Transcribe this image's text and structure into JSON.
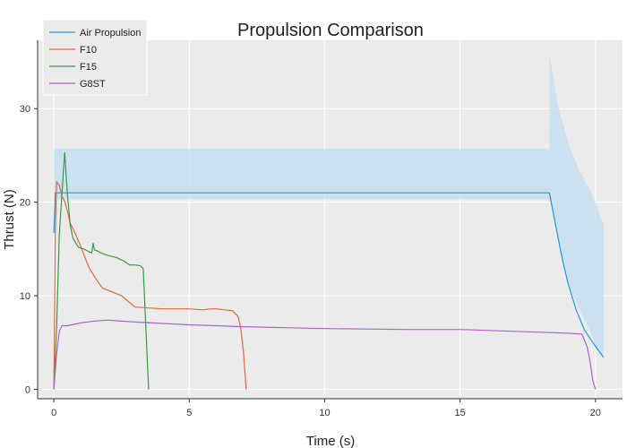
{
  "chart_data": {
    "type": "line",
    "title": "Propulsion Comparison",
    "xlabel": "Time (s)",
    "ylabel": "Thrust (N)",
    "xlim": [
      -0.6,
      21
    ],
    "ylim": [
      -1,
      37.3
    ],
    "xticks": [
      0,
      5,
      10,
      15,
      20
    ],
    "yticks": [
      0,
      10,
      20,
      30
    ],
    "grid": true,
    "legend_position": "top-left",
    "background": "#ebebeb",
    "series": [
      {
        "name": "Air Propulsion",
        "color": "#1f9ae0",
        "x": [
          0,
          0.05,
          2,
          5,
          10,
          15,
          18.3,
          18.4,
          18.6,
          18.8,
          19.0,
          19.3,
          19.6,
          20.0,
          20.3
        ],
        "y": [
          16.7,
          21.0,
          21.0,
          21.0,
          21.0,
          21.0,
          21.0,
          19.5,
          16.5,
          13.6,
          11.2,
          8.4,
          6.3,
          4.6,
          3.4
        ],
        "band": {
          "color": "#c5dff0",
          "x": [
            0,
            18.3,
            18.31,
            18.6,
            19.0,
            19.4,
            19.8,
            20.0,
            20.3
          ],
          "upper": [
            25.7,
            25.7,
            35.6,
            30.5,
            26.3,
            23.4,
            21.3,
            20.0,
            17.6
          ],
          "lower": [
            20.3,
            20.3,
            20.2,
            16.5,
            11.2,
            8.6,
            6.3,
            4.6,
            3.4
          ]
        }
      },
      {
        "name": "F10",
        "color": "#e0683f",
        "x": [
          0,
          0.05,
          0.1,
          0.2,
          0.3,
          0.4,
          0.5,
          0.6,
          0.8,
          1.0,
          1.3,
          1.6,
          1.8,
          2.0,
          2.5,
          3.0,
          3.5,
          4.0,
          4.5,
          5.0,
          5.5,
          5.8,
          6.0,
          6.3,
          6.6,
          6.8,
          6.9,
          7.0,
          7.1
        ],
        "y": [
          0,
          16.8,
          22.2,
          21.8,
          20.6,
          20.1,
          19.0,
          17.8,
          16.6,
          15.2,
          13.0,
          11.6,
          10.8,
          10.6,
          10.0,
          8.8,
          8.7,
          8.6,
          8.6,
          8.6,
          8.5,
          8.6,
          8.6,
          8.5,
          8.4,
          7.8,
          6.6,
          4.0,
          0
        ]
      },
      {
        "name": "F15",
        "color": "#3a9a45",
        "x": [
          0,
          0.1,
          0.2,
          0.3,
          0.4,
          0.5,
          0.6,
          0.7,
          0.9,
          1.1,
          1.3,
          1.4,
          1.45,
          1.5,
          1.6,
          1.8,
          2.0,
          2.3,
          2.6,
          2.8,
          3.0,
          3.2,
          3.3,
          3.5
        ],
        "y": [
          0,
          6.6,
          16.5,
          21.0,
          25.3,
          20.8,
          17.6,
          16.2,
          15.2,
          15.0,
          14.7,
          14.6,
          15.6,
          14.9,
          14.8,
          14.5,
          14.3,
          14.1,
          13.7,
          13.3,
          13.3,
          13.2,
          12.9,
          0
        ]
      },
      {
        "name": "G8ST",
        "color": "#b062cc",
        "x": [
          0,
          0.1,
          0.2,
          0.3,
          0.5,
          1.0,
          1.5,
          2.0,
          3.0,
          5.0,
          7.0,
          10.0,
          13.0,
          15.0,
          17.0,
          18.0,
          19.0,
          19.5,
          19.7,
          19.8,
          19.9,
          20.0
        ],
        "y": [
          0,
          3.8,
          6.2,
          6.8,
          6.8,
          7.1,
          7.3,
          7.4,
          7.2,
          6.9,
          6.7,
          6.5,
          6.4,
          6.4,
          6.2,
          6.1,
          6.0,
          5.9,
          4.5,
          3.0,
          1.0,
          0
        ]
      }
    ]
  }
}
